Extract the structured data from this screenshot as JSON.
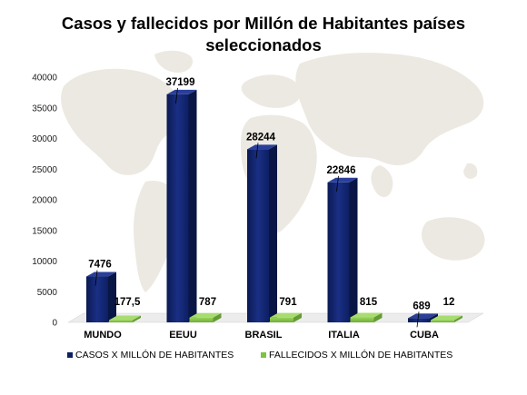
{
  "chart_data": {
    "type": "bar",
    "title": "Casos y fallecidos por Millón de Habitantes países seleccionados",
    "title_lines": [
      "Casos y fallecidos por Millón de Habitantes países",
      "seleccionados"
    ],
    "categories": [
      "MUNDO",
      "EEUU",
      "BRASIL",
      "ITALIA",
      "CUBA"
    ],
    "series": [
      {
        "name": "CASOS X MILLÓN DE HABITANTES",
        "values": [
          7476,
          37199,
          28244,
          22846,
          689
        ],
        "labels": [
          "7476",
          "37199",
          "28244",
          "22846",
          "689"
        ],
        "color": "#0d1f63"
      },
      {
        "name": "FALLECIDOS X MILLÓN DE HABITANTES",
        "values": [
          177.5,
          787,
          791,
          815,
          12
        ],
        "labels": [
          "177,5",
          "787",
          "791",
          "815",
          "12"
        ],
        "color": "#7dc241"
      }
    ],
    "highlight_label_color": "#cc0000",
    "yticks": [
      "0",
      "5000",
      "10000",
      "15000",
      "20000",
      "25000",
      "30000",
      "35000",
      "40000"
    ],
    "ylim": [
      0,
      40000
    ],
    "grid": false,
    "legend": "bottom",
    "background": "world-map"
  }
}
